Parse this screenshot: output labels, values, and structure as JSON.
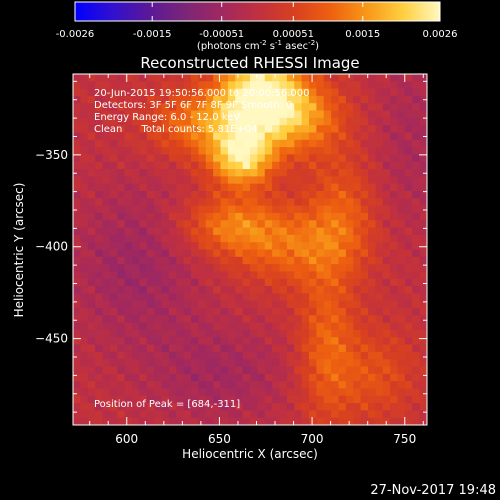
{
  "chart_data": {
    "type": "heatmap",
    "title": "Reconstructed RHESSI Image",
    "xlabel": "Heliocentric X (arcsec)",
    "ylabel": "Heliocentric Y (arcsec)",
    "xlim": [
      571,
      762
    ],
    "ylim": [
      -497,
      -306
    ],
    "x_ticks": [
      600,
      650,
      700,
      750
    ],
    "y_ticks": [
      -450,
      -400,
      -350
    ],
    "colorbar": {
      "range": [
        -0.0026,
        0.0026
      ],
      "tick_values": [
        -0.0026,
        -0.0015,
        -0.00051,
        0.00051,
        0.0015,
        0.0026
      ],
      "tick_labels": [
        "-0.0026",
        "-0.0015",
        "-0.00051",
        "0.00051",
        "0.0015",
        "0.0026"
      ],
      "unit_prefix": "(photons cm",
      "unit_exp1": "-2",
      "unit_mid1": " s",
      "unit_exp2": "-1",
      "unit_mid2": " asec",
      "unit_exp3": "-2",
      "unit_suffix": ")"
    },
    "info_lines": [
      "20-Jun-2015 19:50:56.000 to 20:00:56.000",
      "Detectors: 3F 5F 6F 7F 8F 9F  Smooth: 0",
      "Energy Range: 6.0 - 12.0 keV",
      "Clean      Total counts: 5.81E+04"
    ],
    "peak_label": "Position of Peak = [684,-311]",
    "peak": [
      684,
      -311
    ],
    "sources": [
      {
        "x": 672,
        "y": -318,
        "sx": 16,
        "sy": 16,
        "amp": 0.0027
      },
      {
        "x": 662,
        "y": -352,
        "sx": 12,
        "sy": 11,
        "amp": 0.0021
      },
      {
        "x": 640,
        "y": -333,
        "sx": 20,
        "sy": 13,
        "amp": 0.0012
      },
      {
        "x": 696,
        "y": -330,
        "sx": 16,
        "sy": 14,
        "amp": 0.0012
      },
      {
        "x": 655,
        "y": -388,
        "sx": 19,
        "sy": 11,
        "amp": 0.0011
      },
      {
        "x": 688,
        "y": -400,
        "sx": 24,
        "sy": 15,
        "amp": 0.001
      },
      {
        "x": 716,
        "y": -380,
        "sx": 13,
        "sy": 22,
        "amp": 0.0008
      },
      {
        "x": 708,
        "y": -455,
        "sx": 11,
        "sy": 30,
        "amp": 0.001
      },
      {
        "x": 735,
        "y": -470,
        "sx": 15,
        "sy": 18,
        "amp": 0.0007
      },
      {
        "x": 605,
        "y": -410,
        "sx": 26,
        "sy": 32,
        "amp": -0.0006
      },
      {
        "x": 650,
        "y": -470,
        "sx": 28,
        "sy": 20,
        "amp": -0.0005
      },
      {
        "x": 755,
        "y": -340,
        "sx": 16,
        "sy": 40,
        "amp": -0.0004
      }
    ],
    "grid": false
  },
  "footer": {
    "date": "27-Nov-2017 19:48"
  },
  "colors": {
    "background": "#000000",
    "text": "#ffffff",
    "colormap": [
      "#0000ff",
      "#3010d0",
      "#5a1898",
      "#7a2578",
      "#a02860",
      "#c03040",
      "#d84020",
      "#ee6010",
      "#f89818",
      "#ffd040",
      "#fff8c0"
    ]
  }
}
